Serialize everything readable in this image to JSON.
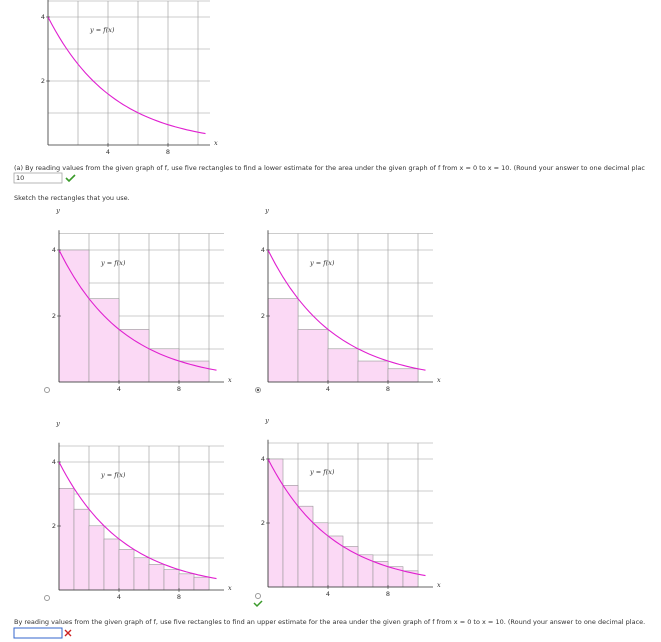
{
  "top_graph": {
    "curve_label": "y = f(x)",
    "x_label": "x",
    "yticks": [
      "4",
      "2"
    ],
    "xticks": [
      "4",
      "8"
    ]
  },
  "question_a": {
    "text": "(a) By reading values from the given graph of f, use five rectangles to find a lower estimate for the area under the given graph of f from x = 0 to x = 10. (Round your answer to one decimal plac",
    "answer": "10"
  },
  "sketch_prompt": "Sketch the rectangles that you use.",
  "options": [
    {
      "y_label": "y",
      "curve_label": "y = f(x)",
      "x_label": "x",
      "yticks": [
        "4",
        "2"
      ],
      "xticks": [
        "4",
        "8"
      ]
    },
    {
      "y_label": "y",
      "curve_label": "y = f(x)",
      "x_label": "x",
      "yticks": [
        "4",
        "2"
      ],
      "xticks": [
        "4",
        "8"
      ]
    },
    {
      "y_label": "y",
      "curve_label": "y = f(x)",
      "x_label": "x",
      "yticks": [
        "4",
        "2"
      ],
      "xticks": [
        "4",
        "8"
      ]
    },
    {
      "y_label": "y",
      "curve_label": "y = f(x)",
      "x_label": "x",
      "yticks": [
        "4",
        "2"
      ],
      "xticks": [
        "4",
        "8"
      ]
    }
  ],
  "question_b": {
    "text": "By reading values from the given graph of f, use five rectangles to find an upper estimate for the area under the given graph of f from x = 0 to x = 10. (Round your answer to one decimal place."
  }
}
